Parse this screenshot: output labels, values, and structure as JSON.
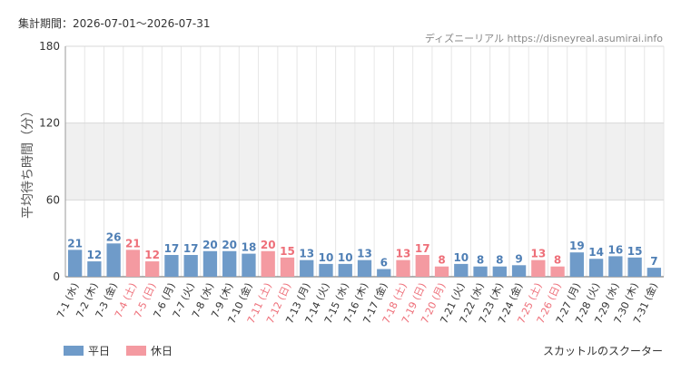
{
  "header": {
    "period": "集計期間：2026-07-01〜2026-07-31",
    "source": "ディズニーリアル https://disneyreal.asumirai.info"
  },
  "footer": {
    "attraction": "スカットルのスクーター"
  },
  "legend": {
    "weekday_label": "平日",
    "holiday_label": "休日"
  },
  "colors": {
    "weekday": "#6f9bc9",
    "holiday": "#f49aa1",
    "weekday_text": "#4f7fb5",
    "holiday_text": "#ee6f79",
    "band": "#f0f0f0"
  },
  "chart_data": {
    "type": "bar",
    "ylabel": "平均待ち時間（分）",
    "ylim": [
      0,
      180
    ],
    "yticks": [
      0,
      60,
      120,
      180
    ],
    "categories": [
      "7-1 (水)",
      "7-2 (木)",
      "7-3 (金)",
      "7-4 (土)",
      "7-5 (日)",
      "7-6 (月)",
      "7-7 (火)",
      "7-8 (水)",
      "7-9 (木)",
      "7-10 (金)",
      "7-11 (土)",
      "7-12 (日)",
      "7-13 (月)",
      "7-14 (火)",
      "7-15 (水)",
      "7-16 (木)",
      "7-17 (金)",
      "7-18 (土)",
      "7-19 (日)",
      "7-20 (月)",
      "7-21 (火)",
      "7-22 (水)",
      "7-23 (木)",
      "7-24 (金)",
      "7-25 (土)",
      "7-26 (日)",
      "7-27 (月)",
      "7-28 (火)",
      "7-29 (水)",
      "7-30 (木)",
      "7-31 (金)"
    ],
    "values": [
      21,
      12,
      26,
      21,
      12,
      17,
      17,
      20,
      20,
      18,
      20,
      15,
      13,
      10,
      10,
      13,
      6,
      13,
      17,
      8,
      10,
      8,
      8,
      9,
      13,
      8,
      19,
      14,
      16,
      15,
      7
    ],
    "day_type": [
      "weekday",
      "weekday",
      "weekday",
      "holiday",
      "holiday",
      "weekday",
      "weekday",
      "weekday",
      "weekday",
      "weekday",
      "holiday",
      "holiday",
      "weekday",
      "weekday",
      "weekday",
      "weekday",
      "weekday",
      "holiday",
      "holiday",
      "holiday",
      "weekday",
      "weekday",
      "weekday",
      "weekday",
      "holiday",
      "holiday",
      "weekday",
      "weekday",
      "weekday",
      "weekday",
      "weekday"
    ],
    "series": [
      {
        "name": "平日"
      },
      {
        "name": "休日"
      }
    ]
  }
}
